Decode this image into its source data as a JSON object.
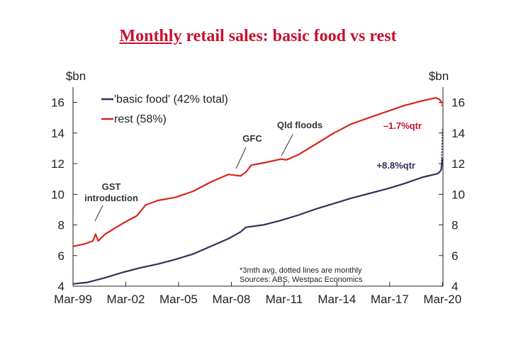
{
  "chart_data": {
    "type": "line",
    "title_underlined": "Monthly",
    "title_rest": " retail sales: basic food vs rest",
    "y_unit_left": "$bn",
    "y_unit_right": "$bn",
    "ylim": [
      4,
      17
    ],
    "yticks": [
      4,
      6,
      8,
      10,
      12,
      14,
      16
    ],
    "x_range": [
      1999.17,
      2020.2
    ],
    "x_ticks": [
      {
        "label": "Mar-99",
        "x": 1999.17
      },
      {
        "label": "Mar-02",
        "x": 2002.17
      },
      {
        "label": "Mar-05",
        "x": 2005.17
      },
      {
        "label": "Mar-08",
        "x": 2008.17
      },
      {
        "label": "Mar-11",
        "x": 2011.17
      },
      {
        "label": "Mar-14",
        "x": 2014.17
      },
      {
        "label": "Mar-17",
        "x": 2017.17
      },
      {
        "label": "Mar-20",
        "x": 2020.17
      }
    ],
    "series": [
      {
        "name": "'basic food' (42% total)",
        "color": "#3b2a5c",
        "points": [
          [
            1999.17,
            4.15
          ],
          [
            2000.0,
            4.25
          ],
          [
            2001.0,
            4.55
          ],
          [
            2002.0,
            4.9
          ],
          [
            2003.0,
            5.2
          ],
          [
            2004.0,
            5.45
          ],
          [
            2005.0,
            5.75
          ],
          [
            2006.0,
            6.1
          ],
          [
            2007.0,
            6.6
          ],
          [
            2008.0,
            7.1
          ],
          [
            2008.7,
            7.55
          ],
          [
            2009.0,
            7.85
          ],
          [
            2010.0,
            8.0
          ],
          [
            2011.0,
            8.3
          ],
          [
            2012.0,
            8.65
          ],
          [
            2013.0,
            9.05
          ],
          [
            2014.0,
            9.4
          ],
          [
            2015.0,
            9.75
          ],
          [
            2016.0,
            10.05
          ],
          [
            2017.0,
            10.35
          ],
          [
            2018.0,
            10.7
          ],
          [
            2019.0,
            11.1
          ],
          [
            2019.9,
            11.35
          ],
          [
            2020.0,
            11.45
          ],
          [
            2020.1,
            11.6
          ],
          [
            2020.17,
            12.35
          ]
        ],
        "dotted_end": [
          [
            2020.1,
            11.6
          ],
          [
            2020.17,
            14.3
          ]
        ]
      },
      {
        "name": "rest (58%)",
        "color": "#d7261e",
        "points": [
          [
            1999.17,
            6.6
          ],
          [
            1999.8,
            6.75
          ],
          [
            2000.3,
            6.95
          ],
          [
            2000.45,
            7.4
          ],
          [
            2000.6,
            6.95
          ],
          [
            2001.0,
            7.4
          ],
          [
            2002.0,
            8.1
          ],
          [
            2002.8,
            8.6
          ],
          [
            2003.3,
            9.3
          ],
          [
            2004.0,
            9.6
          ],
          [
            2005.0,
            9.8
          ],
          [
            2006.0,
            10.2
          ],
          [
            2007.0,
            10.8
          ],
          [
            2008.0,
            11.3
          ],
          [
            2008.7,
            11.2
          ],
          [
            2009.0,
            11.45
          ],
          [
            2009.3,
            11.9
          ],
          [
            2010.0,
            12.05
          ],
          [
            2011.0,
            12.3
          ],
          [
            2011.3,
            12.25
          ],
          [
            2012.0,
            12.6
          ],
          [
            2013.0,
            13.3
          ],
          [
            2014.0,
            14.0
          ],
          [
            2015.0,
            14.6
          ],
          [
            2016.0,
            15.0
          ],
          [
            2017.0,
            15.4
          ],
          [
            2018.0,
            15.8
          ],
          [
            2019.0,
            16.1
          ],
          [
            2019.8,
            16.3
          ],
          [
            2020.0,
            16.2
          ],
          [
            2020.17,
            15.95
          ]
        ],
        "dotted_end": [
          [
            2020.0,
            16.2
          ],
          [
            2020.17,
            15.7
          ]
        ]
      }
    ],
    "annotations": {
      "gst": "GST\nintroduction",
      "gfc": "GFC",
      "qld": "Qld floods",
      "rest_change": "–1.7%qtr",
      "food_change": "+8.8%qtr"
    },
    "notes": [
      "*3mth avg, dotted lines are monthly",
      "Sources: ABS, Westpac Economics"
    ]
  }
}
